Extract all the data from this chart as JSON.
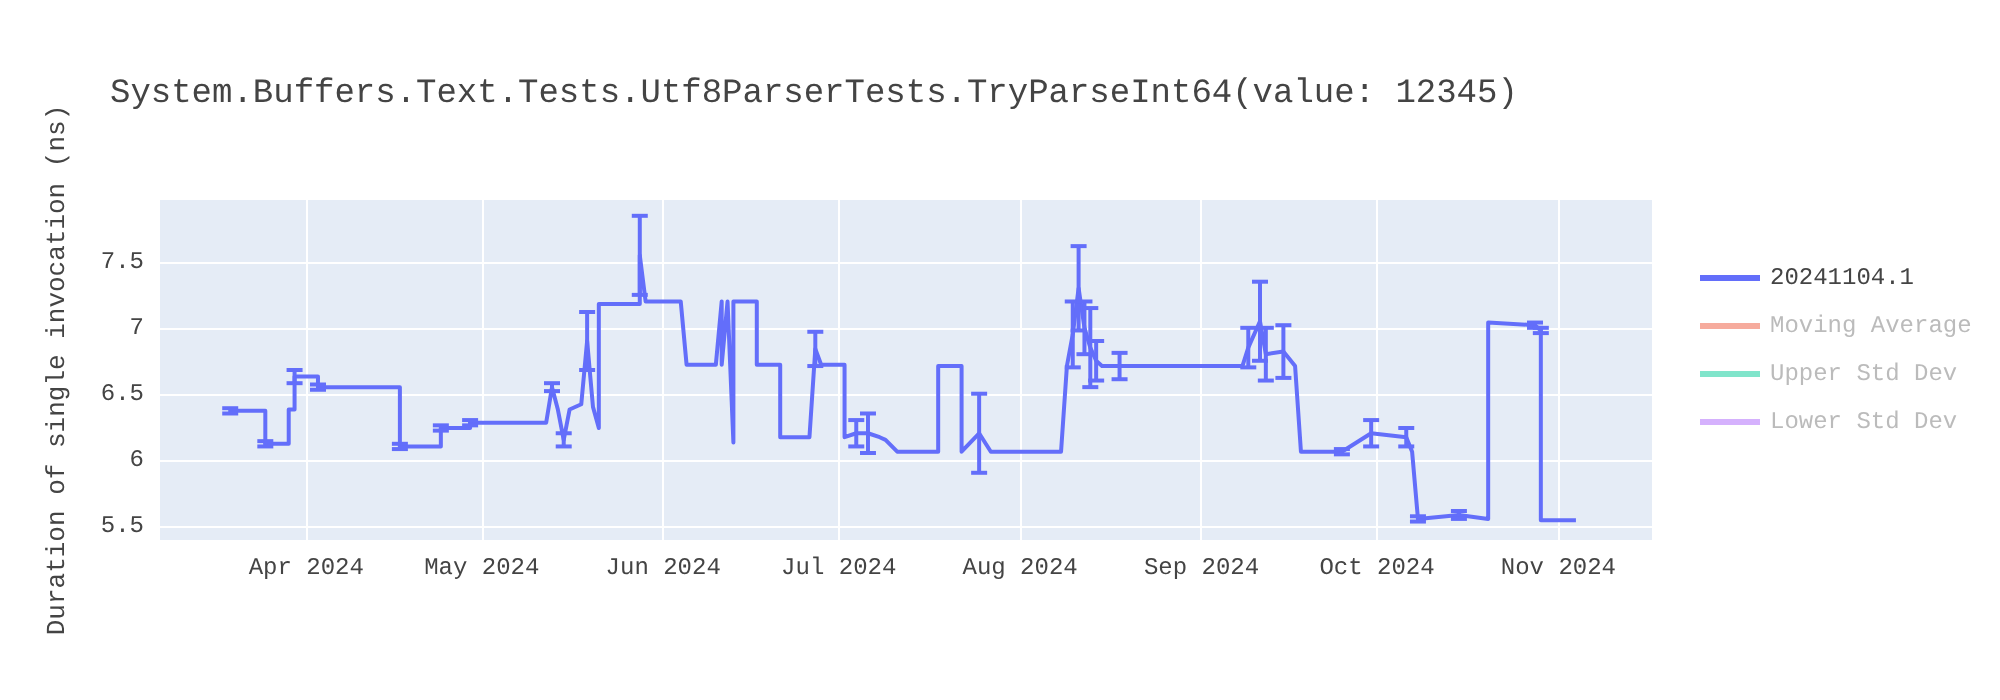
{
  "chart_data": {
    "type": "line",
    "title": "System.Buffers.Text.Tests.Utf8ParserTests.TryParseInt64(value: 12345)",
    "ylabel": "Duration of single invocation (ns)",
    "x": [
      "2024-03-19",
      "2024-03-25",
      "2024-03-25",
      "2024-03-29",
      "2024-03-29",
      "2024-03-30",
      "2024-03-30",
      "2024-04-03",
      "2024-04-03",
      "2024-04-17",
      "2024-04-17",
      "2024-04-24",
      "2024-04-24",
      "2024-04-29",
      "2024-04-29",
      "2024-05-12",
      "2024-05-13",
      "2024-05-14",
      "2024-05-15",
      "2024-05-16",
      "2024-05-18",
      "2024-05-19",
      "2024-05-20",
      "2024-05-21",
      "2024-05-21",
      "2024-05-28",
      "2024-05-28",
      "2024-05-29",
      "2024-06-04",
      "2024-06-05",
      "2024-06-10",
      "2024-06-11",
      "2024-06-11",
      "2024-06-12",
      "2024-06-13",
      "2024-06-13",
      "2024-06-17",
      "2024-06-17",
      "2024-06-21",
      "2024-06-21",
      "2024-06-26",
      "2024-06-27",
      "2024-06-28",
      "2024-07-02",
      "2024-07-02",
      "2024-07-04",
      "2024-07-06",
      "2024-07-08",
      "2024-07-09",
      "2024-07-11",
      "2024-07-18",
      "2024-07-18",
      "2024-07-22",
      "2024-07-22",
      "2024-07-25",
      "2024-07-27",
      "2024-08-08",
      "2024-08-09",
      "2024-08-10",
      "2024-08-11",
      "2024-08-12",
      "2024-08-13",
      "2024-08-14",
      "2024-08-15",
      "2024-08-18",
      "2024-09-08",
      "2024-09-09",
      "2024-09-11",
      "2024-09-12",
      "2024-09-15",
      "2024-09-17",
      "2024-09-18",
      "2024-09-25",
      "2024-09-30",
      "2024-10-06",
      "2024-10-07",
      "2024-10-08",
      "2024-10-15",
      "2024-10-20",
      "2024-10-20",
      "2024-10-28",
      "2024-10-29",
      "2024-10-29",
      "2024-11-04"
    ],
    "series": [
      {
        "name": "20241104.1",
        "color": "#636efa",
        "values": [
          6.37,
          6.37,
          6.12,
          6.12,
          6.38,
          6.38,
          6.63,
          6.63,
          6.55,
          6.55,
          6.1,
          6.1,
          6.24,
          6.24,
          6.28,
          6.28,
          6.55,
          6.38,
          6.15,
          6.38,
          6.42,
          6.9,
          6.4,
          6.24,
          7.18,
          7.18,
          7.55,
          7.2,
          7.2,
          6.72,
          6.72,
          7.2,
          6.72,
          7.2,
          6.13,
          7.2,
          7.2,
          6.72,
          6.72,
          6.17,
          6.17,
          6.84,
          6.72,
          6.72,
          6.17,
          6.2,
          6.2,
          6.17,
          6.15,
          6.06,
          6.06,
          6.71,
          6.71,
          6.06,
          6.2,
          6.06,
          6.06,
          6.71,
          6.95,
          7.3,
          7,
          6.85,
          6.75,
          6.71,
          6.71,
          6.71,
          6.85,
          7.05,
          6.8,
          6.82,
          6.71,
          6.06,
          6.06,
          6.2,
          6.17,
          6.06,
          5.55,
          5.58,
          5.55,
          7.04,
          7.02,
          6.98,
          5.54,
          5.54
        ],
        "errors": [
          0.02,
          null,
          0.02,
          null,
          null,
          null,
          0.05,
          null,
          0.02,
          null,
          0.02,
          null,
          0.02,
          null,
          0.02,
          null,
          0.03,
          null,
          0.05,
          null,
          null,
          0.22,
          null,
          null,
          null,
          null,
          0.3,
          null,
          null,
          null,
          null,
          null,
          null,
          null,
          null,
          null,
          null,
          null,
          null,
          null,
          null,
          0.13,
          null,
          null,
          null,
          0.1,
          0.15,
          null,
          null,
          null,
          null,
          null,
          null,
          null,
          0.3,
          null,
          null,
          null,
          0.25,
          0.32,
          0.2,
          0.3,
          0.15,
          null,
          0.1,
          null,
          0.15,
          0.3,
          0.2,
          0.2,
          null,
          null,
          0.02,
          0.1,
          0.07,
          null,
          0.02,
          0.03,
          null,
          null,
          0.02,
          0.02,
          null,
          null
        ]
      },
      {
        "name": "Moving Average",
        "color": "#f6ab9d",
        "values": [
          null,
          null,
          null,
          null,
          null,
          null,
          null,
          null,
          null,
          null,
          null,
          null,
          null,
          null,
          null,
          null,
          null,
          null,
          null,
          null,
          null,
          null,
          null,
          null,
          null,
          null,
          null,
          null,
          null,
          null,
          null,
          null,
          null,
          null,
          null,
          null,
          null,
          null,
          null,
          null,
          null,
          null,
          null,
          null,
          null,
          null,
          null,
          null,
          null,
          null,
          null,
          null,
          null,
          null,
          null,
          null,
          null,
          null,
          null,
          null,
          null,
          null,
          null,
          null,
          null,
          null,
          null,
          null,
          null,
          null,
          null,
          null,
          null,
          null,
          null,
          null,
          null,
          null,
          null,
          null,
          null,
          null,
          null,
          null
        ]
      },
      {
        "name": "Upper Std Dev",
        "color": "#80e5cb",
        "values": [
          null,
          null,
          null,
          null,
          null,
          null,
          null,
          null,
          null,
          null,
          null,
          null,
          null,
          null,
          null,
          null,
          null,
          null,
          null,
          null,
          null,
          null,
          null,
          null,
          null,
          null,
          null,
          null,
          null,
          null,
          null,
          null,
          null,
          null,
          null,
          null,
          null,
          null,
          null,
          null,
          null,
          null,
          null,
          null,
          null,
          null,
          null,
          null,
          null,
          null,
          null,
          null,
          null,
          null,
          null,
          null,
          null,
          null,
          null,
          null,
          null,
          null,
          null,
          null,
          null,
          null,
          null,
          null,
          null,
          null,
          null,
          null,
          null,
          null,
          null,
          null,
          null,
          null,
          null,
          null,
          null,
          null,
          null,
          null
        ]
      },
      {
        "name": "Lower Std Dev",
        "color": "#d5b1fd",
        "values": [
          null,
          null,
          null,
          null,
          null,
          null,
          null,
          null,
          null,
          null,
          null,
          null,
          null,
          null,
          null,
          null,
          null,
          null,
          null,
          null,
          null,
          null,
          null,
          null,
          null,
          null,
          null,
          null,
          null,
          null,
          null,
          null,
          null,
          null,
          null,
          null,
          null,
          null,
          null,
          null,
          null,
          null,
          null,
          null,
          null,
          null,
          null,
          null,
          null,
          null,
          null,
          null,
          null,
          null,
          null,
          null,
          null,
          null,
          null,
          null,
          null,
          null,
          null,
          null,
          null,
          null,
          null,
          null,
          null,
          null,
          null,
          null,
          null,
          null,
          null,
          null,
          null,
          null,
          null,
          null,
          null,
          null,
          null,
          null
        ]
      }
    ],
    "xlim": [
      "2024-03-07",
      "2024-11-17"
    ],
    "xticks": [
      {
        "value": "2024-04-01",
        "label": "Apr 2024"
      },
      {
        "value": "2024-05-01",
        "label": "May 2024"
      },
      {
        "value": "2024-06-01",
        "label": "Jun 2024"
      },
      {
        "value": "2024-07-01",
        "label": "Jul 2024"
      },
      {
        "value": "2024-08-01",
        "label": "Aug 2024"
      },
      {
        "value": "2024-09-01",
        "label": "Sep 2024"
      },
      {
        "value": "2024-10-01",
        "label": "Oct 2024"
      },
      {
        "value": "2024-11-01",
        "label": "Nov 2024"
      }
    ],
    "ylim": [
      5.39,
      7.97
    ],
    "yticks": [
      5.5,
      6,
      6.5,
      7,
      7.5
    ],
    "grid": true,
    "legend": "top right",
    "marker": "none",
    "line_style": "solid"
  }
}
